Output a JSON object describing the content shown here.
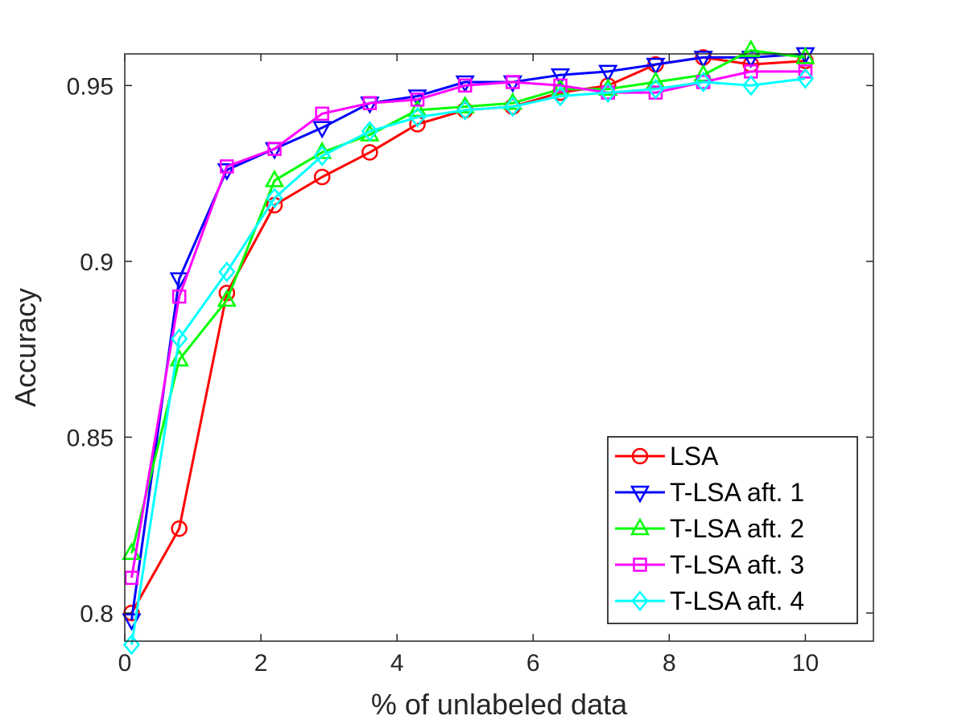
{
  "chart_data": {
    "type": "line",
    "title": "",
    "xlabel": "% of unlabeled data",
    "ylabel": "Accuracy",
    "xlim": [
      0,
      11
    ],
    "ylim": [
      0.792,
      0.959
    ],
    "xticks": [
      0,
      2,
      4,
      6,
      8,
      10
    ],
    "xtick_labels": [
      "0",
      "2",
      "4",
      "6",
      "8",
      "10"
    ],
    "yticks": [
      0.8,
      0.85,
      0.9,
      0.95
    ],
    "ytick_labels": [
      "0.8",
      "0.85",
      "0.9",
      "0.95"
    ],
    "grid": false,
    "legend_position": "bottom-right",
    "x": [
      0.1,
      0.8,
      1.5,
      2.2,
      2.9,
      3.6,
      4.3,
      5.0,
      5.7,
      6.4,
      7.1,
      7.8,
      8.5,
      9.2,
      10.0
    ],
    "series": [
      {
        "name": "LSA",
        "color": "#ff0000",
        "marker": "circle",
        "values": [
          0.8,
          0.824,
          0.891,
          0.916,
          0.924,
          0.931,
          0.939,
          0.943,
          0.944,
          0.948,
          0.95,
          0.956,
          0.958,
          0.956,
          0.957
        ]
      },
      {
        "name": "T-LSA aft. 1",
        "color": "#0000ff",
        "marker": "triangle-down",
        "values": [
          0.798,
          0.895,
          0.926,
          0.932,
          0.938,
          0.945,
          0.947,
          0.951,
          0.951,
          0.953,
          0.954,
          0.956,
          0.958,
          0.958,
          0.959
        ]
      },
      {
        "name": "T-LSA aft. 2",
        "color": "#00ff00",
        "marker": "triangle-up",
        "values": [
          0.817,
          0.872,
          0.889,
          0.923,
          0.931,
          0.936,
          0.943,
          0.944,
          0.945,
          0.949,
          0.949,
          0.951,
          0.953,
          0.96,
          0.958
        ]
      },
      {
        "name": "T-LSA aft. 3",
        "color": "#ff00ff",
        "marker": "square",
        "values": [
          0.81,
          0.89,
          0.927,
          0.932,
          0.942,
          0.945,
          0.946,
          0.95,
          0.951,
          0.95,
          0.948,
          0.948,
          0.951,
          0.954,
          0.954
        ]
      },
      {
        "name": "T-LSA aft. 4",
        "color": "#00ffff",
        "marker": "diamond",
        "values": [
          0.791,
          0.878,
          0.897,
          0.918,
          0.93,
          0.937,
          0.941,
          0.943,
          0.944,
          0.947,
          0.948,
          0.949,
          0.951,
          0.95,
          0.952
        ]
      }
    ]
  }
}
